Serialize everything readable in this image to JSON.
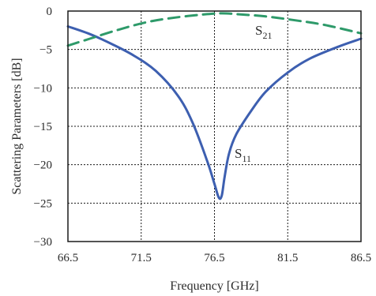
{
  "chart_data": {
    "type": "line",
    "title": "",
    "xlabel": "Frequency [GHz]",
    "ylabel": "Scattering Parameters [dB]",
    "xlim": [
      66.5,
      86.5
    ],
    "ylim": [
      -30,
      0
    ],
    "xticks": [
      66.5,
      71.5,
      76.5,
      81.5,
      86.5
    ],
    "yticks": [
      0,
      -5,
      -10,
      -15,
      -20,
      -25,
      -30
    ],
    "grid": true,
    "legend": "none",
    "series": [
      {
        "name": "S11",
        "label_main": "S",
        "label_sub": "11",
        "color": "#3d5fb0",
        "line_style": "solid",
        "x": [
          66.5,
          68.0,
          69.5,
          71.0,
          72.5,
          74.0,
          75.0,
          76.0,
          76.5,
          76.8,
          77.0,
          77.2,
          77.5,
          78.0,
          79.0,
          80.0,
          81.5,
          83.0,
          85.0,
          86.5
        ],
        "y": [
          -2.0,
          -3.0,
          -4.3,
          -5.8,
          -7.8,
          -11.0,
          -14.5,
          -19.5,
          -22.5,
          -24.3,
          -24.0,
          -21.5,
          -18.5,
          -16.0,
          -13.0,
          -10.5,
          -8.0,
          -6.2,
          -4.6,
          -3.6
        ]
      },
      {
        "name": "S21",
        "label_main": "S",
        "label_sub": "21",
        "color": "#2e9a6a",
        "line_style": "dashed",
        "x": [
          66.5,
          68.0,
          70.0,
          72.0,
          74.0,
          76.0,
          77.0,
          78.0,
          80.0,
          82.0,
          84.0,
          86.5
        ],
        "y": [
          -4.5,
          -3.6,
          -2.4,
          -1.4,
          -0.8,
          -0.4,
          -0.3,
          -0.4,
          -0.7,
          -1.2,
          -1.8,
          -2.9
        ]
      }
    ]
  }
}
